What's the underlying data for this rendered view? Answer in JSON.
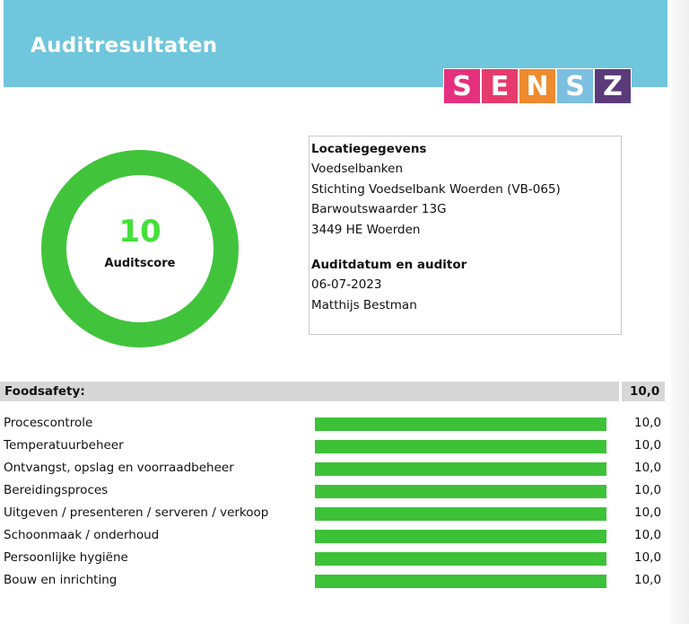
{
  "header": {
    "title": "Auditresultaten"
  },
  "logo": {
    "letters": [
      {
        "char": "S",
        "color": "#e5307d"
      },
      {
        "char": "E",
        "color": "#e53b6c"
      },
      {
        "char": "N",
        "color": "#f08a2e"
      },
      {
        "char": "S",
        "color": "#7cbfe0"
      },
      {
        "char": "Z",
        "color": "#5b3a7a"
      }
    ]
  },
  "score": {
    "value": "10",
    "label": "Auditscore",
    "ring_color": "#41c43c",
    "value_color": "#44e03a"
  },
  "location": {
    "heading": "Locatiegegevens",
    "line1": "Voedselbanken",
    "line2": "Stichting Voedselbank Woerden (VB-065)",
    "line3": "Barwoutswaarder 13G",
    "line4": "3449 HE Woerden"
  },
  "audit": {
    "heading": "Auditdatum en auditor",
    "date": "06-07-2023",
    "auditor": "Matthijs Bestman"
  },
  "section": {
    "name": "Foodsafety:",
    "score": "10,0"
  },
  "categories": [
    {
      "label": "Procescontrole",
      "score": "10,0",
      "fraction": 1.0
    },
    {
      "label": "Temperatuurbeheer",
      "score": "10,0",
      "fraction": 1.0
    },
    {
      "label": "Ontvangst, opslag en voorraadbeheer",
      "score": "10,0",
      "fraction": 1.0
    },
    {
      "label": "Bereidingsproces",
      "score": "10,0",
      "fraction": 1.0
    },
    {
      "label": "Uitgeven / presenteren / serveren / verkoop",
      "score": "10,0",
      "fraction": 1.0
    },
    {
      "label": "Schoonmaak / onderhoud",
      "score": "10,0",
      "fraction": 1.0
    },
    {
      "label": "Persoonlijke hygiëne",
      "score": "10,0",
      "fraction": 1.0
    },
    {
      "label": "Bouw en inrichting",
      "score": "10,0",
      "fraction": 1.0
    }
  ]
}
